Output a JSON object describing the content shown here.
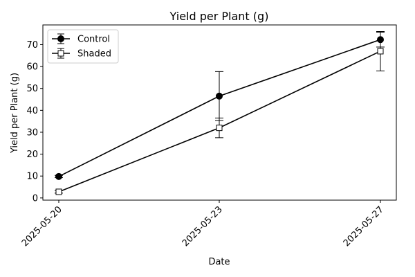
{
  "chart_data": {
    "type": "line",
    "title": "Yield per Plant (g)",
    "xlabel": "Date",
    "ylabel": "Yield per Plant (g)",
    "x": [
      "2025-05-20",
      "2025-05-23",
      "2025-05-27"
    ],
    "ylim": [
      -1,
      79
    ],
    "yticks": [
      0,
      10,
      20,
      30,
      40,
      50,
      60,
      70
    ],
    "grid": false,
    "legend_position": "top-left",
    "series": [
      {
        "name": "Control",
        "marker": "circle",
        "marker_fill": "#000000",
        "values": [
          9.8,
          46.5,
          72.3
        ],
        "errors": [
          0.5,
          11.2,
          3.4
        ]
      },
      {
        "name": "Shaded",
        "marker": "square",
        "marker_fill": "#ffffff",
        "values": [
          2.8,
          32.0,
          67.0
        ],
        "errors": [
          0.6,
          4.5,
          9.0
        ]
      }
    ],
    "line_color": "#000000"
  }
}
